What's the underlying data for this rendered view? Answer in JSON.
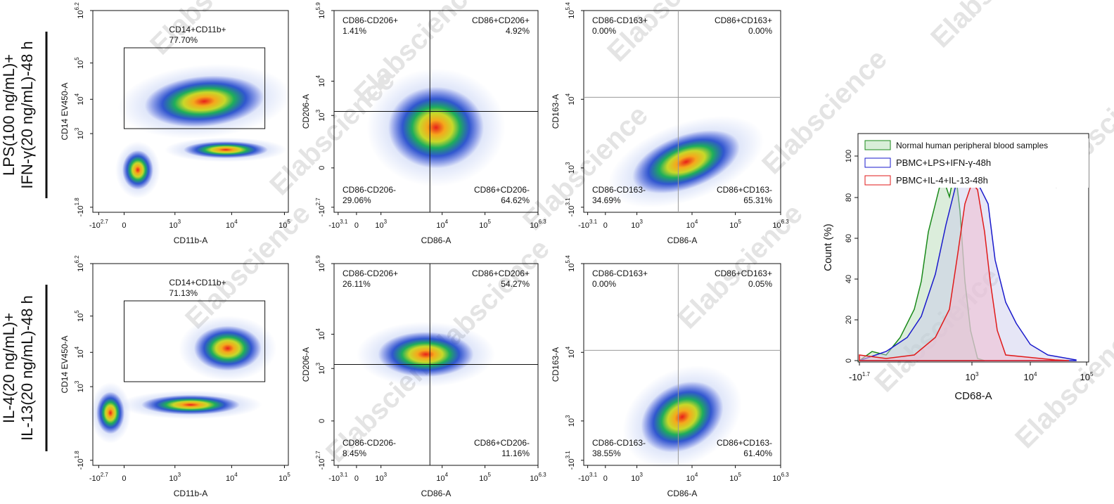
{
  "watermark": "Elabscience",
  "row_labels": [
    [
      "LPS(100 ng/mL)+",
      "IFN-γ(20 ng/mL)-48 h"
    ],
    [
      "IL-4(20 ng/mL)+",
      "IL-13(20 ng/mL)-48 h"
    ]
  ],
  "axes": [
    {
      "x_label": "CD11b-A",
      "y_label": "CD14 EV450-A",
      "x_ticks": [
        {
          "b": "-10",
          "e": "2.7"
        },
        {
          "b": "0"
        },
        {
          "b": "10",
          "e": "3"
        },
        {
          "b": "10",
          "e": "4"
        },
        {
          "b": "10",
          "e": "5"
        }
      ],
      "y_ticks": [
        {
          "b": "-10",
          "e": "1.8"
        },
        {
          "b": "10",
          "e": "3"
        },
        {
          "b": "10",
          "e": "4"
        },
        {
          "b": "10",
          "e": "5"
        },
        {
          "b": "10",
          "e": "6.2"
        }
      ]
    },
    {
      "x_label": "CD86-A",
      "y_label": "CD206-A",
      "x_ticks": [
        {
          "b": "-10",
          "e": "3.1"
        },
        {
          "b": "0"
        },
        {
          "b": "10",
          "e": "3"
        },
        {
          "b": "10",
          "e": "4"
        },
        {
          "b": "10",
          "e": "5"
        },
        {
          "b": "10",
          "e": "6.3"
        }
      ],
      "y_ticks": [
        {
          "b": "-10",
          "e": "2.7"
        },
        {
          "b": "0"
        },
        {
          "b": "10",
          "e": "3"
        },
        {
          "b": "10",
          "e": "4"
        },
        {
          "b": "10",
          "e": "5.9"
        }
      ]
    },
    {
      "x_label": "CD86-A",
      "y_label": "CD163-A",
      "x_ticks": [
        {
          "b": "-10",
          "e": "3.1"
        },
        {
          "b": "0"
        },
        {
          "b": "10",
          "e": "3"
        },
        {
          "b": "10",
          "e": "4"
        },
        {
          "b": "10",
          "e": "5"
        },
        {
          "b": "10",
          "e": "6.3"
        }
      ],
      "y_ticks": [
        {
          "b": "-10",
          "e": "3.1"
        },
        {
          "b": "10",
          "e": "3"
        },
        {
          "b": "10",
          "e": "4"
        },
        {
          "b": "10",
          "e": "5.4"
        }
      ]
    }
  ],
  "rows": [
    {
      "gate": [
        "CD14+CD11b+",
        "77.70%"
      ],
      "quadrants": [
        [
          [
            "CD86-CD206+",
            "1.41%"
          ],
          [
            "CD86+CD206+",
            "4.92%"
          ],
          [
            "CD86-CD206-",
            "29.06%"
          ],
          [
            "CD86+CD206-",
            "64.62%"
          ]
        ],
        [
          [
            "CD86-CD163+",
            "0.00%"
          ],
          [
            "CD86+CD163+",
            "0.00%"
          ],
          [
            "CD86-CD163-",
            "34.69%"
          ],
          [
            "CD86+CD163-",
            "65.31%"
          ]
        ]
      ]
    },
    {
      "gate": [
        "CD14+CD11b+",
        "71.13%"
      ],
      "quadrants": [
        [
          [
            "CD86-CD206+",
            "26.11%"
          ],
          [
            "CD86+CD206+",
            "54.27%"
          ],
          [
            "CD86-CD206-",
            "8.45%"
          ],
          [
            "CD86+CD206-",
            "11.16%"
          ]
        ],
        [
          [
            "CD86-CD163+",
            "0.00%"
          ],
          [
            "CD86+CD163+",
            "0.05%"
          ],
          [
            "CD86-CD163-",
            "38.55%"
          ],
          [
            "CD86+CD163-",
            "61.40%"
          ]
        ]
      ]
    }
  ],
  "histogram": {
    "legend": [
      "Normal human peripheral blood samples",
      "PBMC+LPS+IFN-γ-48h",
      "PBMC+IL-4+IL-13-48h"
    ],
    "x_label": "CD68-A",
    "y_label": "Count  (%)",
    "y_ticks": [
      0,
      20,
      40,
      60,
      80,
      100
    ],
    "x_ticks": [
      {
        "b": "-10",
        "e": "1.7"
      },
      {
        "b": "10",
        "e": "3"
      },
      {
        "b": "10",
        "e": "4"
      },
      {
        "b": "10",
        "e": "5"
      }
    ]
  }
}
